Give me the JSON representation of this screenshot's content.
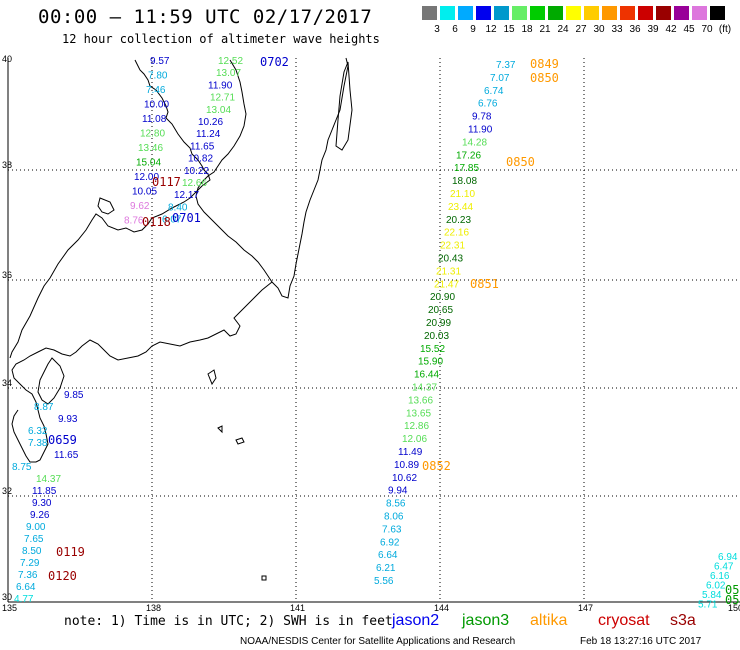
{
  "title": "00:00 – 11:59 UTC 02/17/2017",
  "subtitle": "12 hour collection of altimeter wave heights",
  "colorbar": {
    "colors": [
      "#777777",
      "#00eeee",
      "#00aaff",
      "#0000ee",
      "#0099cc",
      "#66ee66",
      "#00cc00",
      "#00aa00",
      "#ffff00",
      "#ffcc00",
      "#ff9900",
      "#ee3300",
      "#cc0000",
      "#990000",
      "#990099",
      "#dd77dd",
      "#000000"
    ],
    "labels": [
      "3",
      "6",
      "9",
      "12",
      "15",
      "18",
      "21",
      "24",
      "27",
      "30",
      "33",
      "36",
      "39",
      "42",
      "45",
      "70",
      "(ft)"
    ]
  },
  "axes": {
    "lat_labels": [
      "40",
      "38",
      "36",
      "34",
      "32",
      "30"
    ],
    "lon_labels": [
      "135",
      "138",
      "141",
      "144",
      "147",
      "150"
    ]
  },
  "tracks": [
    {
      "id": "west",
      "points": [
        {
          "v": "9.57",
          "c": "#0000cc"
        },
        {
          "v": "7.80",
          "c": "#00aadd"
        },
        {
          "v": "7.46",
          "c": "#00aadd"
        },
        {
          "v": "10.00",
          "c": "#0000cc"
        },
        {
          "v": "11.08",
          "c": "#0000cc"
        },
        {
          "v": "12.80",
          "c": "#55dd55"
        },
        {
          "v": "13.46",
          "c": "#55dd55"
        },
        {
          "v": "15.04",
          "c": "#00aa00"
        },
        {
          "v": "12.00",
          "c": "#0000cc"
        },
        {
          "v": "10.05",
          "c": "#0000cc"
        },
        {
          "v": "9.62",
          "c": "#dd77dd"
        },
        {
          "v": "8.76",
          "c": "#dd77dd"
        }
      ]
    },
    {
      "id": "mid",
      "points": [
        {
          "v": "12.52",
          "c": "#55dd55"
        },
        {
          "v": "13.07",
          "c": "#55dd55"
        },
        {
          "v": "11.90",
          "c": "#0000cc"
        },
        {
          "v": "12.71",
          "c": "#55dd55"
        },
        {
          "v": "13.04",
          "c": "#55dd55"
        },
        {
          "v": "10.26",
          "c": "#0000cc"
        },
        {
          "v": "11.24",
          "c": "#0000cc"
        },
        {
          "v": "11.65",
          "c": "#0000cc"
        },
        {
          "v": "10.82",
          "c": "#0000cc"
        },
        {
          "v": "10.22",
          "c": "#0000cc"
        },
        {
          "v": "12.66",
          "c": "#55dd55"
        },
        {
          "v": "12.17",
          "c": "#0000cc"
        },
        {
          "v": "8.40",
          "c": "#00aadd"
        },
        {
          "v": "6.07",
          "c": "#00aadd"
        }
      ]
    },
    {
      "id": "south",
      "points": [
        {
          "v": "9.85",
          "c": "#0000cc"
        },
        {
          "v": "8.87",
          "c": "#00aadd"
        },
        {
          "v": "9.93",
          "c": "#0000cc"
        },
        {
          "v": "6.32",
          "c": "#00aadd"
        },
        {
          "v": "7.38",
          "c": "#00aadd"
        },
        {
          "v": "11.65",
          "c": "#0000cc"
        },
        {
          "v": "8.75",
          "c": "#00aadd"
        },
        {
          "v": "14.37",
          "c": "#55dd55"
        },
        {
          "v": "11.85",
          "c": "#0000cc"
        },
        {
          "v": "9.30",
          "c": "#0000cc"
        },
        {
          "v": "9.26",
          "c": "#0000cc"
        },
        {
          "v": "9.00",
          "c": "#00aadd"
        },
        {
          "v": "7.65",
          "c": "#00aadd"
        },
        {
          "v": "8.50",
          "c": "#00aadd"
        },
        {
          "v": "7.29",
          "c": "#00aadd"
        },
        {
          "v": "7.36",
          "c": "#00aadd"
        },
        {
          "v": "6.64",
          "c": "#00aadd"
        },
        {
          "v": "4.77",
          "c": "#00dddd"
        }
      ]
    },
    {
      "id": "east",
      "points": [
        {
          "v": "7.37",
          "c": "#00aadd"
        },
        {
          "v": "7.07",
          "c": "#00aadd"
        },
        {
          "v": "6.74",
          "c": "#00aadd"
        },
        {
          "v": "6.76",
          "c": "#00aadd"
        },
        {
          "v": "9.78",
          "c": "#0000cc"
        },
        {
          "v": "11.90",
          "c": "#0000cc"
        },
        {
          "v": "14.28",
          "c": "#55dd55"
        },
        {
          "v": "17.26",
          "c": "#00aa00"
        },
        {
          "v": "17.85",
          "c": "#00aa00"
        },
        {
          "v": "18.08",
          "c": "#006600"
        },
        {
          "v": "21.10",
          "c": "#eeee00"
        },
        {
          "v": "23.44",
          "c": "#eeee00"
        },
        {
          "v": "20.23",
          "c": "#006600"
        },
        {
          "v": "22.16",
          "c": "#eeee00"
        },
        {
          "v": "22.31",
          "c": "#eeee00"
        },
        {
          "v": "20.43",
          "c": "#006600"
        },
        {
          "v": "21.31",
          "c": "#eeee00"
        },
        {
          "v": "21.47",
          "c": "#eeee00"
        },
        {
          "v": "20.90",
          "c": "#006600"
        },
        {
          "v": "20.65",
          "c": "#006600"
        },
        {
          "v": "20.99",
          "c": "#006600"
        },
        {
          "v": "20.03",
          "c": "#006600"
        },
        {
          "v": "15.52",
          "c": "#00aa00"
        },
        {
          "v": "15.90",
          "c": "#00aa00"
        },
        {
          "v": "16.44",
          "c": "#00aa00"
        },
        {
          "v": "14.37",
          "c": "#55dd55"
        },
        {
          "v": "13.66",
          "c": "#55dd55"
        },
        {
          "v": "13.65",
          "c": "#55dd55"
        },
        {
          "v": "12.86",
          "c": "#55dd55"
        },
        {
          "v": "12.06",
          "c": "#55dd55"
        },
        {
          "v": "11.49",
          "c": "#0000cc"
        },
        {
          "v": "10.89",
          "c": "#0000cc"
        },
        {
          "v": "10.62",
          "c": "#0000cc"
        },
        {
          "v": "9.94",
          "c": "#0000cc"
        },
        {
          "v": "8.56",
          "c": "#00aadd"
        },
        {
          "v": "8.06",
          "c": "#00aadd"
        },
        {
          "v": "7.63",
          "c": "#00aadd"
        },
        {
          "v": "6.92",
          "c": "#00aadd"
        },
        {
          "v": "6.64",
          "c": "#00aadd"
        },
        {
          "v": "6.21",
          "c": "#00aadd"
        },
        {
          "v": "5.56",
          "c": "#00aadd"
        }
      ]
    },
    {
      "id": "far_east",
      "points": [
        {
          "v": "6.94",
          "c": "#00dddd"
        },
        {
          "v": "6.47",
          "c": "#00dddd"
        },
        {
          "v": "6.16",
          "c": "#00dddd"
        },
        {
          "v": "6.02",
          "c": "#00dddd"
        },
        {
          "v": "5.84",
          "c": "#00dddd"
        },
        {
          "v": "5.71",
          "c": "#00dddd"
        }
      ]
    }
  ],
  "time_labels": [
    {
      "t": "0702",
      "c": "#0000cc"
    },
    {
      "t": "0117",
      "c": "#990000"
    },
    {
      "t": "0118",
      "c": "#990000"
    },
    {
      "t": "0701",
      "c": "#0000cc"
    },
    {
      "t": "0659",
      "c": "#0000cc"
    },
    {
      "t": "0119",
      "c": "#990000"
    },
    {
      "t": "0120",
      "c": "#990000"
    },
    {
      "t": "0849",
      "c": "#ff9900"
    },
    {
      "t": "0850",
      "c": "#ff9900"
    },
    {
      "t": "0850",
      "c": "#ff9900"
    },
    {
      "t": "0851",
      "c": "#ff9900"
    },
    {
      "t": "0852",
      "c": "#ff9900"
    },
    {
      "t": "05",
      "c": "#009900"
    },
    {
      "t": "05",
      "c": "#009900"
    }
  ],
  "note": "note: 1) Time is in UTC; 2) SWH is in feet",
  "legend": [
    {
      "name": "jason2",
      "color": "#0000ee"
    },
    {
      "name": "jason3",
      "color": "#009900"
    },
    {
      "name": "altika",
      "color": "#ff9900"
    },
    {
      "name": "cryosat",
      "color": "#cc0000"
    },
    {
      "name": "s3a",
      "color": "#990000"
    }
  ],
  "footer_left": "NOAA/NESDIS Center for Satellite Applications and Research",
  "footer_right": "Feb 18 13:27:16 UTC 2017"
}
